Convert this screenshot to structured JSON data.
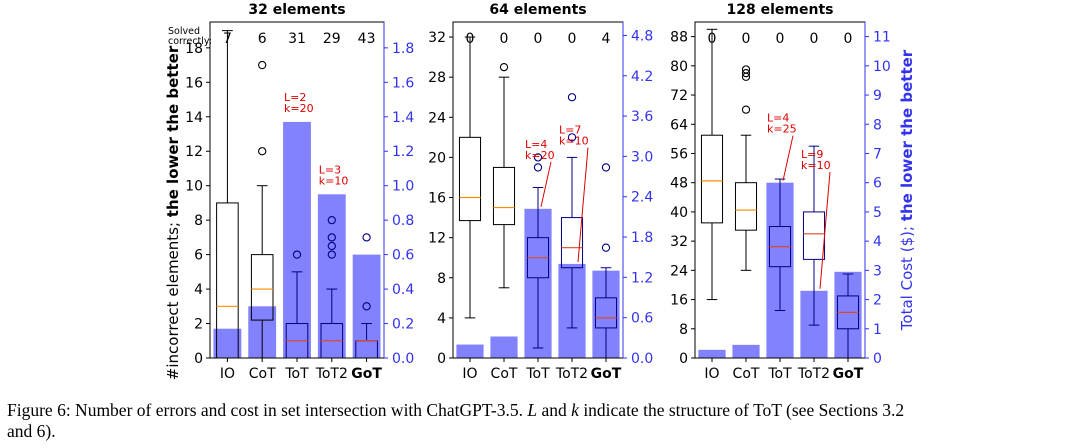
{
  "colors": {
    "bar": "#7b7bff",
    "axis_right": "#3333ee",
    "annotation": "#dd0000",
    "median": "#ff8c00",
    "median_tot": "#d84a30",
    "box": "#000000",
    "box_tot": "#000080"
  },
  "methods": [
    "IO",
    "CoT",
    "ToT",
    "ToT2",
    "GoT"
  ],
  "solved_label": "Solved correctly:",
  "left_axis_label": {
    "normal": "#incorrect elements; ",
    "bold": "the lower the better"
  },
  "right_axis_label": {
    "normal": "Total Cost ($); ",
    "bold": "the lower the better"
  },
  "caption": {
    "lead": "Figure 6: Number of errors and cost in set intersection with ChatGPT-3.5. ",
    "var_l": "L",
    "and": " and ",
    "var_k": "k",
    "tail1": " indicate the structure of ToT (see Sections 3.2",
    "tail2": "and 6)."
  },
  "chart_data": [
    {
      "type": "box+bar",
      "title": "32 elements",
      "ylim": [
        0,
        19.5
      ],
      "yticks": [
        0,
        2,
        4,
        6,
        8,
        10,
        12,
        14,
        16,
        18
      ],
      "y2lim": [
        0,
        1.95
      ],
      "y2ticks": [
        "0.0",
        "0.2",
        "0.4",
        "0.6",
        "0.8",
        "1.0",
        "1.2",
        "1.4",
        "1.6",
        "1.8"
      ],
      "solved": [
        7,
        6,
        31,
        29,
        43
      ],
      "cost": [
        0.17,
        0.3,
        1.37,
        0.95,
        0.6
      ],
      "boxes": [
        {
          "q1": 0,
          "median": 3,
          "q3": 9,
          "whislo": 0,
          "whishi": 19,
          "fliers": []
        },
        {
          "q1": 2.2,
          "median": 4,
          "q3": 6,
          "whislo": 0,
          "whishi": 10,
          "fliers": [
            12,
            17
          ]
        },
        {
          "q1": 0,
          "median": 1,
          "q3": 2,
          "whislo": 0,
          "whishi": 5,
          "fliers": [
            6
          ]
        },
        {
          "q1": 0,
          "median": 1,
          "q3": 2,
          "whislo": 0,
          "whishi": 4,
          "fliers": [
            6,
            6.5,
            7,
            8
          ]
        },
        {
          "q1": 0,
          "median": 1,
          "q3": 1,
          "whislo": 0,
          "whishi": 2,
          "fliers": [
            3,
            7
          ]
        }
      ],
      "annotations": [
        {
          "method": 2,
          "lines": [
            "L=2",
            "k=20"
          ]
        },
        {
          "method": 3,
          "lines": [
            "L=3",
            "k=10"
          ]
        }
      ]
    },
    {
      "type": "box+bar",
      "title": "64 elements",
      "ylim": [
        0,
        33.5
      ],
      "yticks": [
        0,
        4,
        8,
        12,
        16,
        20,
        24,
        28,
        32
      ],
      "y2lim": [
        0,
        5.0
      ],
      "y2ticks": [
        "0.0",
        "0.6",
        "1.2",
        "1.8",
        "2.4",
        "3.0",
        "3.6",
        "4.2",
        "4.8"
      ],
      "solved": [
        0,
        0,
        0,
        0,
        4
      ],
      "cost": [
        0.2,
        0.32,
        2.22,
        1.4,
        1.3
      ],
      "boxes": [
        {
          "q1": 13.7,
          "median": 16,
          "q3": 22,
          "whislo": 4,
          "whishi": 32,
          "fliers": []
        },
        {
          "q1": 13.3,
          "median": 15,
          "q3": 19,
          "whislo": 7,
          "whishi": 28,
          "fliers": [
            29
          ]
        },
        {
          "q1": 8,
          "median": 10,
          "q3": 12,
          "whislo": 1,
          "whishi": 17,
          "fliers": [
            19,
            20
          ]
        },
        {
          "q1": 9,
          "median": 11,
          "q3": 14,
          "whislo": 3,
          "whishi": 20,
          "fliers": [
            22,
            26
          ]
        },
        {
          "q1": 3,
          "median": 4,
          "q3": 6,
          "whislo": 0,
          "whishi": 9,
          "fliers": [
            11,
            19
          ]
        }
      ],
      "annotations": [
        {
          "method": 2,
          "lines": [
            "L=4",
            "k=20"
          ]
        },
        {
          "method": 3,
          "lines": [
            "L=7",
            "k=10"
          ]
        }
      ]
    },
    {
      "type": "box+bar",
      "title": "128 elements",
      "ylim": [
        0,
        92
      ],
      "yticks": [
        0,
        8,
        16,
        24,
        32,
        40,
        48,
        56,
        64,
        72,
        80,
        88
      ],
      "y2lim": [
        0,
        11.5
      ],
      "y2ticks": [
        "0",
        "1",
        "2",
        "3",
        "4",
        "5",
        "6",
        "7",
        "8",
        "9",
        "10",
        "11"
      ],
      "solved": [
        0,
        0,
        0,
        0,
        0
      ],
      "cost": [
        0.28,
        0.45,
        6.0,
        2.3,
        2.95
      ],
      "boxes": [
        {
          "q1": 37,
          "median": 48.5,
          "q3": 61,
          "whislo": 16,
          "whishi": 90,
          "fliers": []
        },
        {
          "q1": 35,
          "median": 40.5,
          "q3": 48,
          "whislo": 24,
          "whishi": 61,
          "fliers": [
            68,
            77,
            78,
            79
          ]
        },
        {
          "q1": 25,
          "median": 30.5,
          "q3": 36,
          "whislo": 13,
          "whishi": 49,
          "fliers": []
        },
        {
          "q1": 27,
          "median": 34,
          "q3": 40,
          "whislo": 9,
          "whishi": 58,
          "fliers": []
        },
        {
          "q1": 8,
          "median": 12.5,
          "q3": 17,
          "whislo": 0,
          "whishi": 23,
          "fliers": []
        }
      ],
      "annotations": [
        {
          "method": 2,
          "lines": [
            "L=4",
            "k=25"
          ]
        },
        {
          "method": 3,
          "lines": [
            "L=9",
            "k=10"
          ]
        }
      ]
    }
  ]
}
